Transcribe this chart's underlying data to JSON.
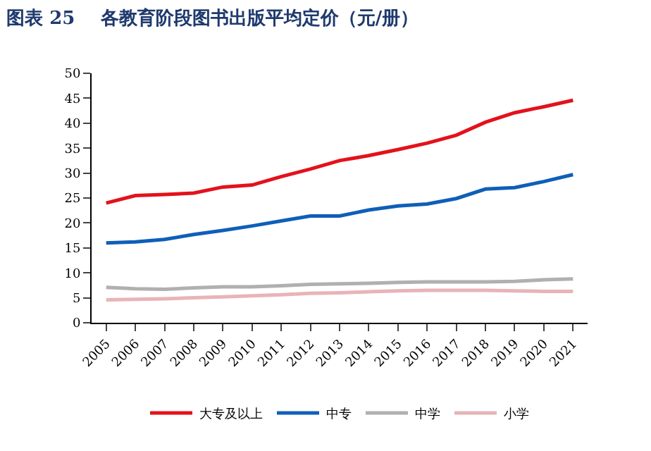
{
  "chart_data": {
    "type": "line",
    "title": "图表 25    各教育阶段图书出版平均定价（元/册）",
    "categories": [
      "2005",
      "2006",
      "2007",
      "2008",
      "2009",
      "2010",
      "2011",
      "2012",
      "2013",
      "2014",
      "2015",
      "2016",
      "2017",
      "2018",
      "2019",
      "2020",
      "2021"
    ],
    "series": [
      {
        "name": "大专及以上",
        "color": "#e3121b",
        "values": [
          24,
          25.5,
          25.7,
          26,
          27.2,
          27.6,
          29.3,
          30.8,
          32.5,
          33.5,
          34.7,
          36,
          37.6,
          40.2,
          42.1,
          43.3,
          44.6
        ]
      },
      {
        "name": "中专",
        "color": "#0e5fb8",
        "values": [
          16,
          16.2,
          16.7,
          17.7,
          18.5,
          19.4,
          20.4,
          21.4,
          21.4,
          22.6,
          23.4,
          23.8,
          24.9,
          26.8,
          27.1,
          28.3,
          29.7
        ]
      },
      {
        "name": "中学",
        "color": "#b0b0b0",
        "values": [
          7.1,
          6.8,
          6.7,
          7,
          7.2,
          7.2,
          7.4,
          7.7,
          7.8,
          7.9,
          8.1,
          8.2,
          8.2,
          8.2,
          8.3,
          8.6,
          8.8
        ]
      },
      {
        "name": "小学",
        "color": "#e8b4b8",
        "values": [
          4.6,
          4.7,
          4.8,
          5,
          5.2,
          5.4,
          5.6,
          5.9,
          6,
          6.2,
          6.4,
          6.5,
          6.5,
          6.5,
          6.4,
          6.3,
          6.3
        ]
      }
    ],
    "ylim": [
      0,
      50
    ],
    "yticks": [
      0,
      5,
      10,
      15,
      20,
      25,
      30,
      35,
      40,
      45,
      50
    ],
    "legend": "bottom",
    "marker": "none",
    "line_style": "solid"
  }
}
